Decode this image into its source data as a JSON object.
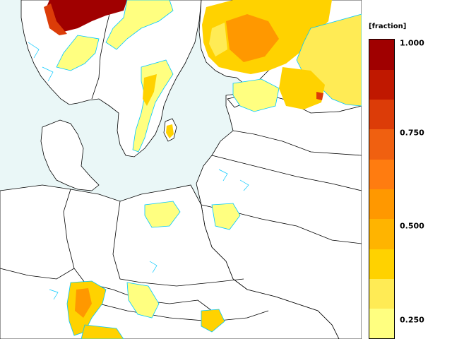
{
  "legend": {
    "unit": "[fraction]",
    "ticks": [
      {
        "value": 1.0,
        "label": "1.000"
      },
      {
        "value": 0.75,
        "label": "0.750"
      },
      {
        "value": 0.5,
        "label": "0.500"
      },
      {
        "value": 0.25,
        "label": "0.250"
      }
    ],
    "colors": [
      "#ffff80",
      "#ffeb55",
      "#ffd200",
      "#ffb400",
      "#ff9800",
      "#ff7c10",
      "#f06010",
      "#dc3c08",
      "#c01800",
      "#a00000"
    ],
    "min": 0.2,
    "max": 1.0
  },
  "map": {
    "background_color": "#eaf7f7",
    "land_color": "#ffffff",
    "border_color": "#000000",
    "snow_low_color": "#ffff80",
    "snow_mid_color": "#ffd200",
    "snow_high_color": "#a00000",
    "edge_color": "#00c8ff"
  }
}
